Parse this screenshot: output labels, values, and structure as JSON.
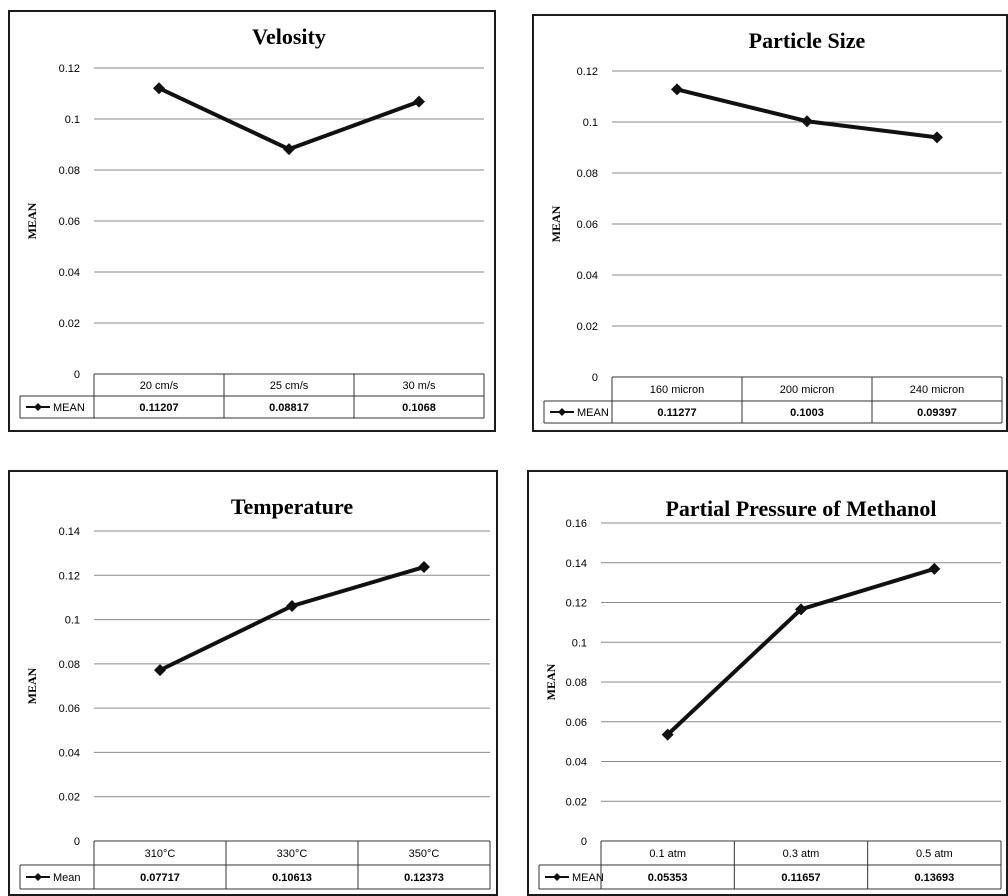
{
  "chart_data": [
    {
      "type": "line",
      "title": "Velosity",
      "ylabel": "MEAN",
      "ylim": [
        0,
        0.12
      ],
      "yticks": [
        "0",
        "0.02",
        "0.04",
        "0.06",
        "0.08",
        "0.1",
        "0.12"
      ],
      "categories": [
        "20 cm/s",
        "25 cm/s",
        "30 m/s"
      ],
      "series": [
        {
          "name": "MEAN",
          "values": [
            0.11207,
            0.08817,
            0.1068
          ],
          "labels": [
            "0.11207",
            "0.08817",
            "0.1068"
          ]
        }
      ],
      "grid": true,
      "legend": "data-table-left",
      "color": "#111111"
    },
    {
      "type": "line",
      "title": "Particle Size",
      "ylabel": "MEAN",
      "ylim": [
        0,
        0.12
      ],
      "yticks": [
        "0",
        "0.02",
        "0.04",
        "0.06",
        "0.08",
        "0.1",
        "0.12"
      ],
      "categories": [
        "160 micron",
        "200 micron",
        "240 micron"
      ],
      "series": [
        {
          "name": "MEAN",
          "values": [
            0.11277,
            0.1003,
            0.09397
          ],
          "labels": [
            "0.11277",
            "0.1003",
            "0.09397"
          ]
        }
      ],
      "grid": true,
      "legend": "data-table-left",
      "color": "#111111"
    },
    {
      "type": "line",
      "title": "Temperature",
      "ylabel": "MEAN",
      "ylim": [
        0,
        0.14
      ],
      "yticks": [
        "0",
        "0.02",
        "0.04",
        "0.06",
        "0.08",
        "0.1",
        "0.12",
        "0.14"
      ],
      "categories": [
        "310°C",
        "330°C",
        "350°C"
      ],
      "series": [
        {
          "name": "Mean",
          "values": [
            0.07717,
            0.10613,
            0.12373
          ],
          "labels": [
            "0.07717",
            "0.10613",
            "0.12373"
          ]
        }
      ],
      "grid": true,
      "legend": "data-table-left",
      "color": "#111111"
    },
    {
      "type": "line",
      "title": "Partial Pressure of Methanol",
      "ylabel": "MEAN",
      "ylim": [
        0,
        0.16
      ],
      "yticks": [
        "0",
        "0.02",
        "0.04",
        "0.06",
        "0.08",
        "0.1",
        "0.12",
        "0.14",
        "0.16"
      ],
      "categories": [
        "0.1 atm",
        "0.3 atm",
        "0.5 atm"
      ],
      "series": [
        {
          "name": "MEAN",
          "values": [
            0.05353,
            0.11657,
            0.13693
          ],
          "labels": [
            "0.05353",
            "0.11657",
            "0.13693"
          ]
        }
      ],
      "grid": true,
      "legend": "data-table-left",
      "color": "#111111"
    }
  ]
}
